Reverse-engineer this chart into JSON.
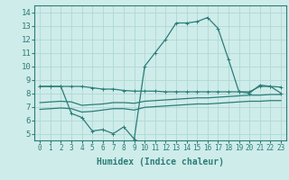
{
  "x": [
    0,
    1,
    2,
    3,
    4,
    5,
    6,
    7,
    8,
    9,
    10,
    11,
    12,
    13,
    14,
    15,
    16,
    17,
    18,
    19,
    20,
    21,
    22,
    23
  ],
  "line1": [
    8.5,
    8.5,
    8.5,
    8.5,
    8.5,
    8.4,
    8.3,
    8.3,
    8.2,
    8.15,
    8.15,
    8.15,
    8.1,
    8.1,
    8.1,
    8.1,
    8.1,
    8.1,
    8.1,
    8.1,
    8.1,
    8.5,
    8.5,
    8.45
  ],
  "line2": [
    8.5,
    8.5,
    8.5,
    6.5,
    6.2,
    5.2,
    5.3,
    5.0,
    5.5,
    4.6,
    10.0,
    11.0,
    12.0,
    13.2,
    13.2,
    13.3,
    13.6,
    12.8,
    10.5,
    8.1,
    8.0,
    8.6,
    8.5,
    8.0
  ],
  "line3": [
    7.3,
    7.35,
    7.4,
    7.35,
    7.1,
    7.15,
    7.2,
    7.3,
    7.3,
    7.25,
    7.4,
    7.45,
    7.5,
    7.55,
    7.6,
    7.65,
    7.65,
    7.7,
    7.75,
    7.8,
    7.85,
    7.85,
    7.9,
    7.9
  ],
  "line4": [
    6.8,
    6.85,
    6.9,
    6.85,
    6.6,
    6.65,
    6.75,
    6.85,
    6.85,
    6.75,
    6.95,
    7.0,
    7.05,
    7.1,
    7.15,
    7.2,
    7.2,
    7.25,
    7.3,
    7.35,
    7.4,
    7.4,
    7.45,
    7.45
  ],
  "color": "#2d7d78",
  "bg_color": "#ceecea",
  "grid_color": "#b0d8d4",
  "xlabel": "Humidex (Indice chaleur)",
  "ylim": [
    4.5,
    14.5
  ],
  "xlim": [
    -0.5,
    23.5
  ],
  "yticks": [
    5,
    6,
    7,
    8,
    9,
    10,
    11,
    12,
    13,
    14
  ],
  "xticks": [
    0,
    1,
    2,
    3,
    4,
    5,
    6,
    7,
    8,
    9,
    10,
    11,
    12,
    13,
    14,
    15,
    16,
    17,
    18,
    19,
    20,
    21,
    22,
    23
  ],
  "tick_fontsize": 5.5,
  "label_fontsize": 6.5,
  "xlabel_fontsize": 7.0
}
